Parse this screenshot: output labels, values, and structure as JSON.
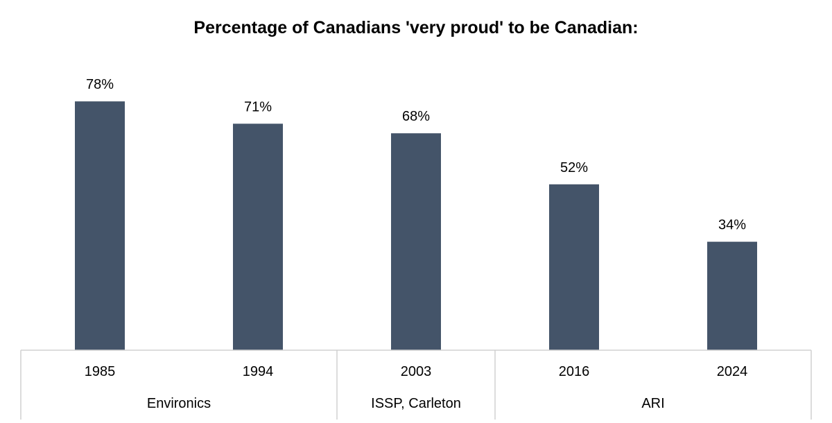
{
  "chart_data": {
    "type": "bar",
    "title": "Percentage of Canadians 'very proud' to be Canadian:",
    "categories": [
      "1985",
      "1994",
      "2003",
      "2016",
      "2024"
    ],
    "values": [
      78,
      71,
      68,
      52,
      34
    ],
    "value_labels": [
      "78%",
      "71%",
      "68%",
      "52%",
      "34%"
    ],
    "groups": [
      {
        "label": "Environics",
        "categories": [
          "1985",
          "1994"
        ]
      },
      {
        "label": "ISSP, Carleton",
        "categories": [
          "2003"
        ]
      },
      {
        "label": "ARI",
        "categories": [
          "2016",
          "2024"
        ]
      }
    ],
    "ylim": [
      0,
      100
    ],
    "bar_color": "#445469",
    "grid": false,
    "legend": "none"
  }
}
